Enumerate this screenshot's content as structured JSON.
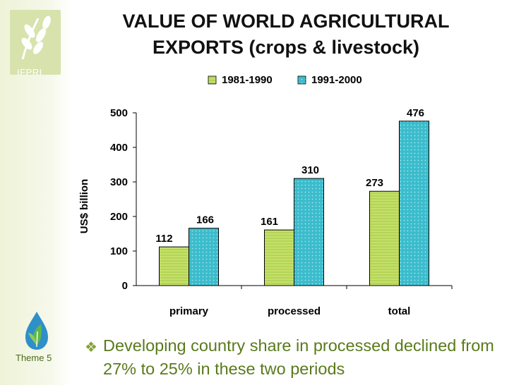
{
  "branding": {
    "org": "IFPRI",
    "theme_label": "Theme 5"
  },
  "title": "VALUE OF WORLD AGRICULTURAL EXPORTS (crops & livestock)",
  "chart_data": {
    "type": "bar",
    "title": "VALUE OF WORLD AGRICULTURAL EXPORTS (crops & livestock)",
    "categories": [
      "primary",
      "processed",
      "total"
    ],
    "series": [
      {
        "name": "1981-1990",
        "values": [
          112,
          161,
          273
        ],
        "color": "#c5e06a"
      },
      {
        "name": "1991-2000",
        "values": [
          166,
          310,
          476
        ],
        "color": "#3bbccc"
      }
    ],
    "xlabel": "",
    "ylabel": "US$ billion",
    "ylim": [
      0,
      500
    ],
    "yticks": [
      0,
      100,
      200,
      300,
      400,
      500
    ],
    "legend": "top-center",
    "grid": false
  },
  "bullet": {
    "icon": "diamond-bullet-icon",
    "text": "Developing country share in processed declined from 27% to 25% in these two periods"
  }
}
